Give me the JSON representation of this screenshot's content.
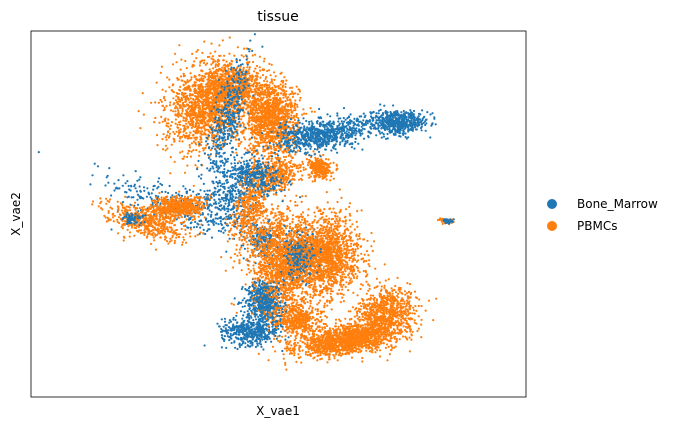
{
  "chart_data": {
    "type": "scatter",
    "title": "tissue",
    "xlabel": "X_vae1",
    "ylabel": "X_vae2",
    "xlim": [
      -5.1,
      5.1
    ],
    "ylim": [
      -4.0,
      4.0
    ],
    "grid": false,
    "ticks": false,
    "legend_placement": "right-outside",
    "series": [
      {
        "name": "Bone_Marrow",
        "color": "#1f77b4",
        "regions": [
          {
            "center": [
              -1.95,
              0.15
            ],
            "spread": [
              1.45,
              0.42
            ],
            "count": 350,
            "angle": -20
          },
          {
            "center": [
              -0.45,
              0.85
            ],
            "spread": [
              0.55,
              0.35
            ],
            "count": 260,
            "angle": -25
          },
          {
            "center": [
              0.95,
              1.75
            ],
            "spread": [
              0.95,
              0.3
            ],
            "count": 760,
            "angle": 12
          },
          {
            "center": [
              2.45,
              2.0
            ],
            "spread": [
              0.5,
              0.22
            ],
            "count": 560,
            "angle": 0
          },
          {
            "center": [
              -1.05,
              2.1
            ],
            "spread": [
              0.28,
              1.25
            ],
            "count": 380,
            "angle": -15
          },
          {
            "center": [
              -0.95,
              0.45
            ],
            "spread": [
              0.45,
              0.6
            ],
            "count": 320,
            "angle": 0
          },
          {
            "center": [
              -0.35,
              -0.6
            ],
            "spread": [
              0.32,
              0.35
            ],
            "count": 180,
            "angle": 0
          },
          {
            "center": [
              -0.3,
              -1.9
            ],
            "spread": [
              0.35,
              0.42
            ],
            "count": 320,
            "angle": 0
          },
          {
            "center": [
              -0.55,
              -2.55
            ],
            "spread": [
              0.55,
              0.28
            ],
            "count": 300,
            "angle": 0
          },
          {
            "center": [
              0.45,
              -0.95
            ],
            "spread": [
              0.35,
              0.45
            ],
            "count": 220,
            "angle": 0
          },
          {
            "center": [
              -3.0,
              -0.1
            ],
            "spread": [
              0.2,
              0.12
            ],
            "count": 60,
            "angle": 0
          },
          {
            "center": [
              3.5,
              -0.15
            ],
            "spread": [
              0.12,
              0.05
            ],
            "count": 25,
            "angle": 0
          }
        ]
      },
      {
        "name": "PBMCs",
        "color": "#ff7f0e",
        "regions": [
          {
            "center": [
              -1.45,
              2.4
            ],
            "spread": [
              0.7,
              0.9
            ],
            "count": 1600,
            "angle": -30
          },
          {
            "center": [
              -0.15,
              2.1
            ],
            "spread": [
              0.5,
              0.7
            ],
            "count": 1300,
            "angle": 0
          },
          {
            "center": [
              -0.85,
              2.8
            ],
            "spread": [
              0.5,
              0.45
            ],
            "count": 500,
            "angle": 0
          },
          {
            "center": [
              -2.75,
              -0.15
            ],
            "spread": [
              0.75,
              0.28
            ],
            "count": 500,
            "angle": -18
          },
          {
            "center": [
              -2.05,
              0.15
            ],
            "spread": [
              0.5,
              0.22
            ],
            "count": 500,
            "angle": 0
          },
          {
            "center": [
              0.85,
              1.0
            ],
            "spread": [
              0.2,
              0.2
            ],
            "count": 300,
            "angle": 0
          },
          {
            "center": [
              -0.55,
              0.2
            ],
            "spread": [
              0.3,
              0.9
            ],
            "count": 500,
            "angle": -15
          },
          {
            "center": [
              0.0,
              0.9
            ],
            "spread": [
              0.4,
              0.35
            ],
            "count": 300,
            "angle": 40
          },
          {
            "center": [
              0.1,
              -1.1
            ],
            "spread": [
              0.6,
              1.0
            ],
            "count": 1500,
            "angle": 0
          },
          {
            "center": [
              1.0,
              -0.9
            ],
            "spread": [
              0.6,
              0.8
            ],
            "count": 1500,
            "angle": 0
          },
          {
            "center": [
              1.4,
              -2.75
            ],
            "spread": [
              0.95,
              0.28
            ],
            "count": 1400,
            "angle": 10
          },
          {
            "center": [
              2.2,
              -2.2
            ],
            "spread": [
              0.6,
              0.5
            ],
            "count": 800,
            "angle": 40
          },
          {
            "center": [
              0.4,
              -2.35
            ],
            "spread": [
              0.45,
              0.3
            ],
            "count": 400,
            "angle": 0
          },
          {
            "center": [
              3.45,
              -0.15
            ],
            "spread": [
              0.12,
              0.05
            ],
            "count": 60,
            "angle": -8
          }
        ]
      }
    ]
  }
}
